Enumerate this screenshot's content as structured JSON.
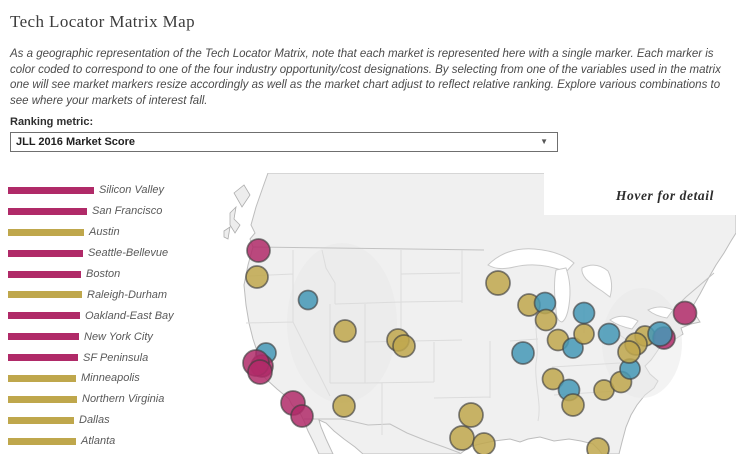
{
  "title": "Tech Locator Matrix Map",
  "description": "As a geographic representation of the Tech Locator Matrix, note that each market is represented here with a single marker. Each marker is color coded to correspond to one of the four industry opportunity/cost designations. By selecting from one of the variables used in the matrix one will see market markers resize accordingly as well as the market chart adjust to reflect relative ranking. Explore various combinations to see where your markets of interest fall.",
  "ranking": {
    "label": "Ranking metric:",
    "value": "JLL 2016 Market Score",
    "chevron": "▼"
  },
  "map": {
    "hover_note": "Hover for detail"
  },
  "colors": {
    "pink": "#b02a68",
    "gold": "#bfa74c",
    "teal": "#4498b6",
    "marker_stroke": "#3f3f3f"
  },
  "chart_data": [
    {
      "type": "bar",
      "orientation": "horizontal",
      "value_axis_visible": false,
      "categories": [
        "Silicon Valley",
        "San Francisco",
        "Austin",
        "Seattle-Bellevue",
        "Boston",
        "Raleigh-Durham",
        "Oakland-East Bay",
        "New York City",
        "SF Peninsula",
        "Minneapolis",
        "Northern Virginia",
        "Dallas",
        "Atlanta"
      ],
      "series": [
        {
          "name": "relative_bar_length_px",
          "values": [
            86,
            79,
            76,
            75,
            73,
            74,
            72,
            71,
            70,
            68,
            69,
            66,
            68
          ]
        }
      ],
      "colors_by_category": [
        "pink",
        "pink",
        "gold",
        "pink",
        "pink",
        "gold",
        "pink",
        "pink",
        "pink",
        "gold",
        "gold",
        "gold",
        "gold"
      ]
    },
    {
      "type": "scatter",
      "name": "us-map-markers",
      "points": [
        {
          "x": 36.5,
          "y": 77.5,
          "r": 11.5,
          "color": "pink"
        },
        {
          "x": 35,
          "y": 104,
          "r": 11,
          "color": "gold"
        },
        {
          "x": 86,
          "y": 127,
          "r": 9.5,
          "color": "teal"
        },
        {
          "x": 44,
          "y": 180,
          "r": 10,
          "color": "teal"
        },
        {
          "x": 40,
          "y": 193,
          "r": 11,
          "color": "pink"
        },
        {
          "x": 34,
          "y": 190,
          "r": 13,
          "color": "pink"
        },
        {
          "x": 38,
          "y": 199,
          "r": 12,
          "color": "pink"
        },
        {
          "x": 71,
          "y": 230,
          "r": 12,
          "color": "pink"
        },
        {
          "x": 80,
          "y": 243,
          "r": 11,
          "color": "pink"
        },
        {
          "x": 123,
          "y": 158,
          "r": 11,
          "color": "gold"
        },
        {
          "x": 122,
          "y": 233,
          "r": 11,
          "color": "gold"
        },
        {
          "x": 176,
          "y": 167,
          "r": 11,
          "color": "gold"
        },
        {
          "x": 182,
          "y": 173,
          "r": 11,
          "color": "gold"
        },
        {
          "x": 276,
          "y": 110,
          "r": 12,
          "color": "gold"
        },
        {
          "x": 307,
          "y": 132,
          "r": 11,
          "color": "gold"
        },
        {
          "x": 323,
          "y": 130,
          "r": 10.5,
          "color": "teal"
        },
        {
          "x": 324,
          "y": 147,
          "r": 10.5,
          "color": "gold"
        },
        {
          "x": 362,
          "y": 140,
          "r": 10.5,
          "color": "teal"
        },
        {
          "x": 301,
          "y": 180,
          "r": 11,
          "color": "teal"
        },
        {
          "x": 336,
          "y": 167,
          "r": 10.5,
          "color": "gold"
        },
        {
          "x": 351,
          "y": 175,
          "r": 10,
          "color": "teal"
        },
        {
          "x": 362,
          "y": 161,
          "r": 10,
          "color": "gold"
        },
        {
          "x": 387,
          "y": 161,
          "r": 10.5,
          "color": "teal"
        },
        {
          "x": 249,
          "y": 242,
          "r": 12,
          "color": "gold"
        },
        {
          "x": 240,
          "y": 265,
          "r": 12,
          "color": "gold"
        },
        {
          "x": 262,
          "y": 271,
          "r": 11,
          "color": "gold"
        },
        {
          "x": 331,
          "y": 206,
          "r": 10.5,
          "color": "gold"
        },
        {
          "x": 347,
          "y": 217,
          "r": 10.5,
          "color": "teal"
        },
        {
          "x": 351,
          "y": 232,
          "r": 11,
          "color": "gold"
        },
        {
          "x": 382,
          "y": 217,
          "r": 10,
          "color": "gold"
        },
        {
          "x": 399,
          "y": 209,
          "r": 10.5,
          "color": "gold"
        },
        {
          "x": 408,
          "y": 196,
          "r": 10,
          "color": "teal"
        },
        {
          "x": 376,
          "y": 276,
          "r": 11,
          "color": "gold"
        },
        {
          "x": 423,
          "y": 163,
          "r": 10,
          "color": "gold"
        },
        {
          "x": 414,
          "y": 171,
          "r": 11,
          "color": "gold"
        },
        {
          "x": 407,
          "y": 179,
          "r": 11,
          "color": "gold"
        },
        {
          "x": 442,
          "y": 165,
          "r": 11,
          "color": "pink"
        },
        {
          "x": 438,
          "y": 161,
          "r": 12,
          "color": "teal"
        },
        {
          "x": 463,
          "y": 140,
          "r": 11.5,
          "color": "pink"
        }
      ]
    }
  ]
}
